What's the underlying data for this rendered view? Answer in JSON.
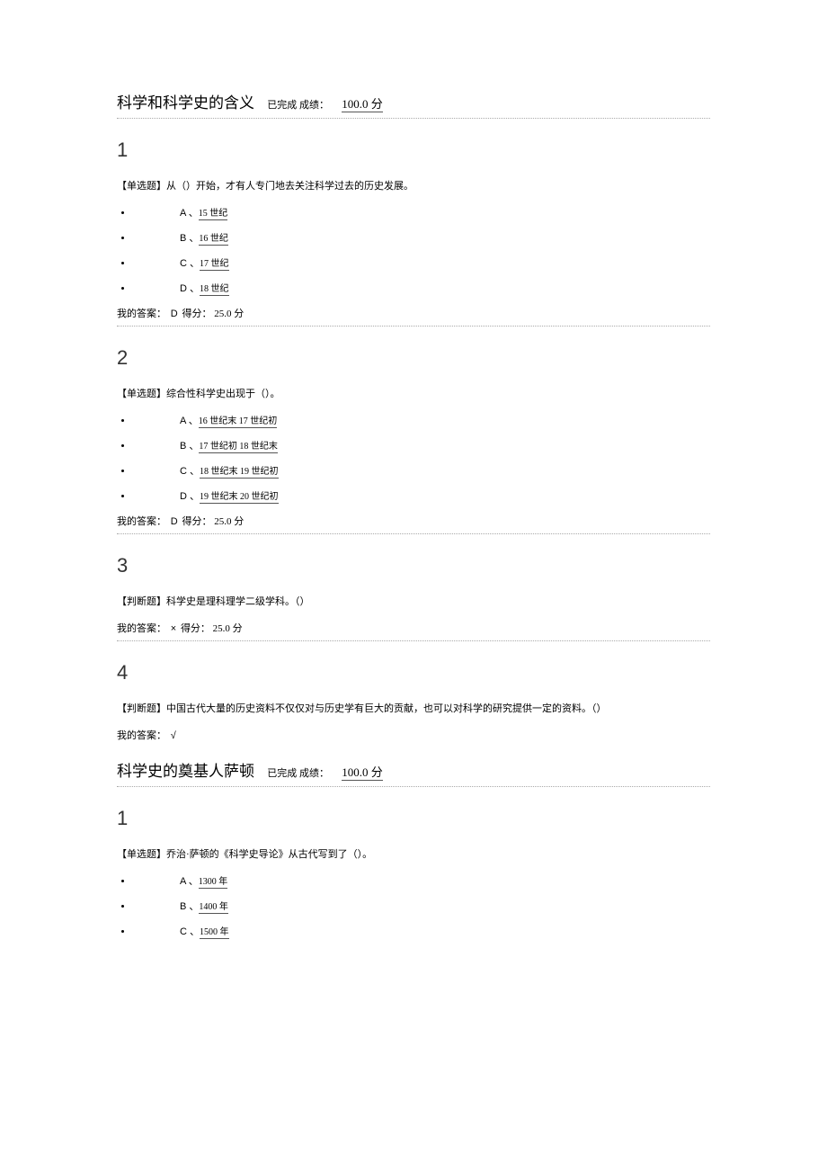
{
  "sections": [
    {
      "title_main": "科学和科学史的含义",
      "title_status": "已完成 成绩：",
      "title_score": "100.0 分",
      "questions": [
        {
          "num": "1",
          "text": "【单选题】从（）开始，才有人专门地去关注科学过去的历史发展。",
          "options": [
            {
              "letter": "A 、",
              "text": "15 世纪"
            },
            {
              "letter": "B 、",
              "text": "16 世纪"
            },
            {
              "letter": "C 、",
              "text": "17 世纪"
            },
            {
              "letter": "D 、",
              "text": "18 世纪"
            }
          ],
          "answer_prefix": "我的答案：",
          "answer_val": "D",
          "answer_score": "得分： 25.0 分",
          "has_border": true
        },
        {
          "num": "2",
          "text": "【单选题】综合性科学史出现于（）。",
          "options": [
            {
              "letter": "A 、",
              "text": "16 世纪末 17 世纪初"
            },
            {
              "letter": "B 、",
              "text": "17 世纪初 18 世纪末"
            },
            {
              "letter": "C 、",
              "text": "18 世纪末 19 世纪初"
            },
            {
              "letter": "D 、",
              "text": "19 世纪末 20 世纪初"
            }
          ],
          "answer_prefix": "我的答案：",
          "answer_val": "D",
          "answer_score": "得分： 25.0 分",
          "has_border": true
        },
        {
          "num": "3",
          "text": "【判断题】科学史是理科理学二级学科。（）",
          "options": [],
          "answer_prefix": "我的答案：",
          "answer_val": "×",
          "answer_score": "得分： 25.0 分",
          "has_border": true
        },
        {
          "num": "4",
          "text": "【判断题】中国古代大量的历史资料不仅仅对与历史学有巨大的贡献，也可以对科学的研究提供一定的资料。（）",
          "options": [],
          "answer_prefix": "我的答案：",
          "answer_val": "√",
          "answer_score": "",
          "has_border": false
        }
      ]
    },
    {
      "title_main": "科学史的奠基人萨顿",
      "title_status": "已完成 成绩：",
      "title_score": "100.0 分",
      "questions": [
        {
          "num": "1",
          "text": "【单选题】乔治·萨顿的《科学史导论》从古代写到了（）。",
          "options": [
            {
              "letter": "A 、",
              "text": "1300 年"
            },
            {
              "letter": "B 、",
              "text": "1400 年"
            },
            {
              "letter": "C 、",
              "text": "1500 年"
            }
          ],
          "answer_prefix": "",
          "answer_val": "",
          "answer_score": "",
          "has_border": false,
          "no_answer_line": true
        }
      ]
    }
  ]
}
